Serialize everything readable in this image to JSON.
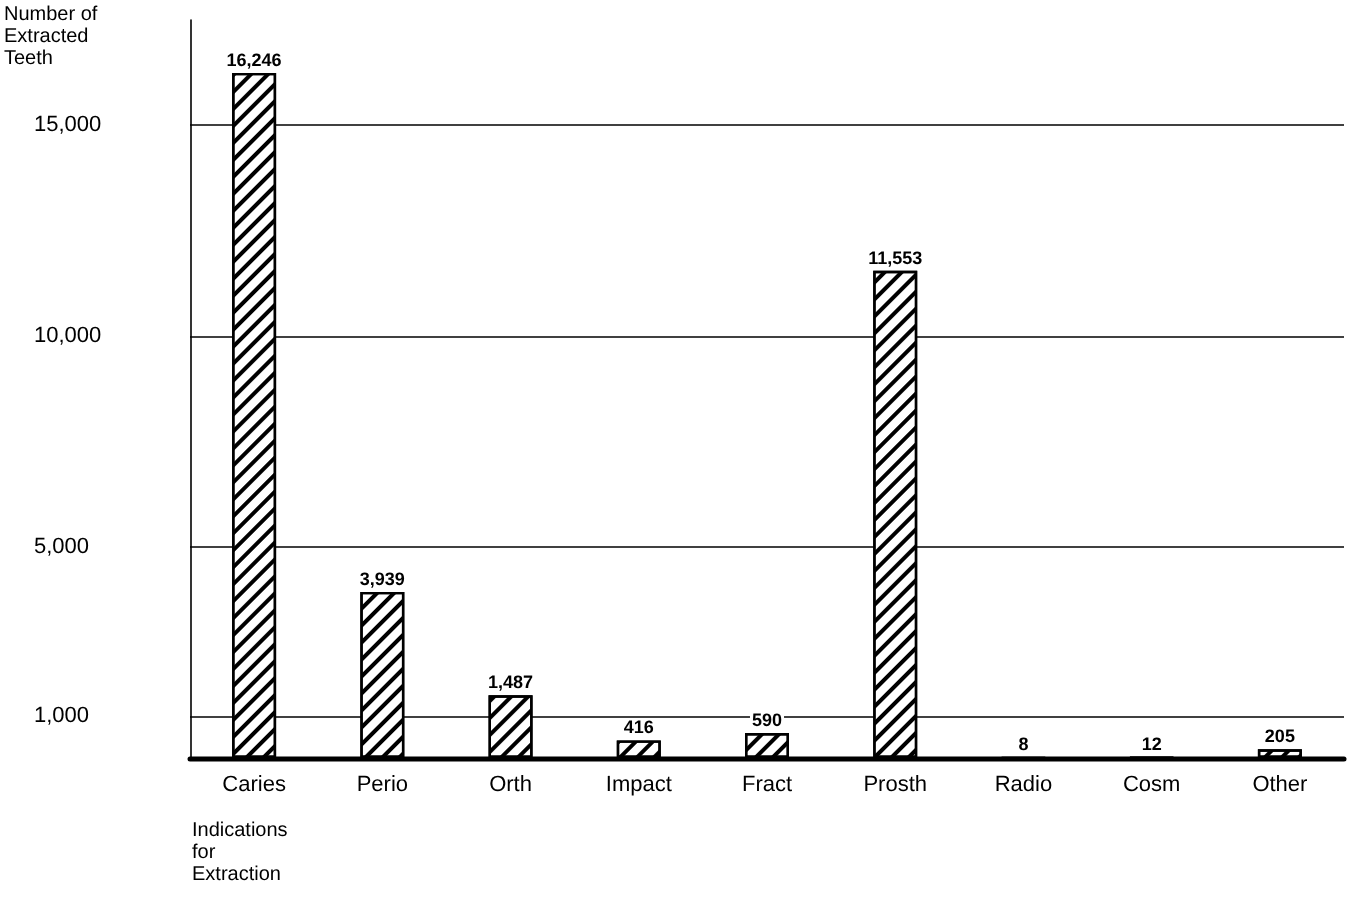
{
  "chart_data": {
    "type": "bar",
    "ylabel": "Number of\nExtracted\nTeeth",
    "xlabel": "Indications\nfor\nExtraction",
    "categories": [
      "Caries",
      "Perio",
      "Orth",
      "Impact",
      "Fract",
      "Prosth",
      "Radio",
      "Cosm",
      "Other"
    ],
    "values": [
      16246,
      3939,
      1487,
      416,
      590,
      11553,
      8,
      12,
      205
    ],
    "value_labels": [
      "16,246",
      "3,939",
      "1,487",
      "416",
      "590",
      "11,553",
      "8",
      "12",
      "205"
    ],
    "color": "#000000",
    "ylim": [
      0,
      17500
    ],
    "yticks": [
      {
        "value": 1000,
        "label": "1,000"
      },
      {
        "value": 5000,
        "label": "5,000"
      },
      {
        "value": 10000,
        "label": "10,000"
      },
      {
        "value": 15000,
        "label": "15,000"
      }
    ],
    "grid": "y"
  }
}
